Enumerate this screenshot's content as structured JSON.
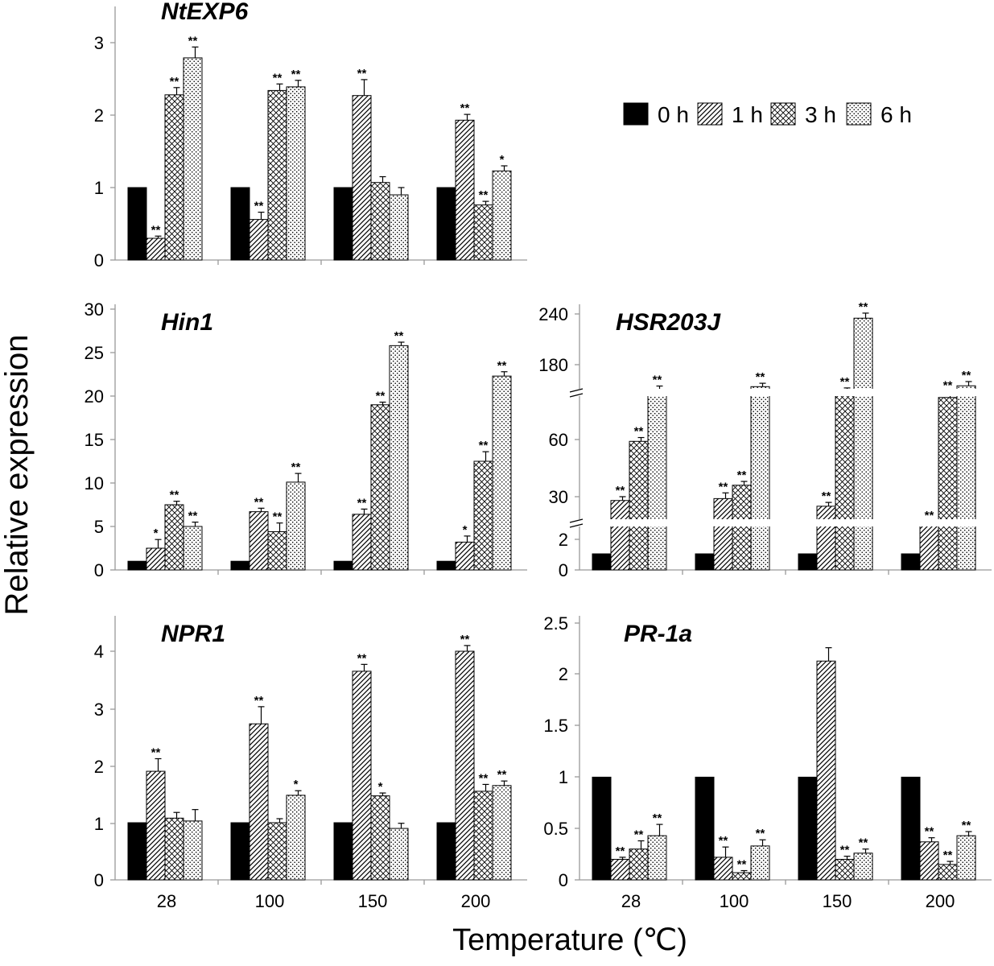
{
  "figure": {
    "ylabel": "Relative expression",
    "xlabel": "Temperature (℃)",
    "legend": [
      {
        "label": "0 h",
        "pattern": "solid"
      },
      {
        "label": "1 h",
        "pattern": "diagonal"
      },
      {
        "label": "3 h",
        "pattern": "crosshatch"
      },
      {
        "label": "6 h",
        "pattern": "dots"
      }
    ]
  },
  "chart_data": [
    {
      "type": "bar",
      "title": "NtEXP6",
      "categories": [
        "28",
        "100",
        "150",
        "200"
      ],
      "ylim": [
        0,
        3.5
      ],
      "yticks": [
        "0",
        "1",
        "2",
        "3"
      ],
      "series": [
        {
          "name": "0 h",
          "values": [
            1,
            1,
            1,
            1
          ],
          "errors": [
            0,
            0,
            0,
            0
          ],
          "sig": [
            "",
            "",
            "",
            ""
          ]
        },
        {
          "name": "1 h",
          "values": [
            0.3,
            0.56,
            2.27,
            1.93
          ],
          "errors": [
            0.03,
            0.1,
            0.22,
            0.08
          ],
          "sig": [
            "**",
            "**",
            "**",
            "**"
          ]
        },
        {
          "name": "3 h",
          "values": [
            2.28,
            2.34,
            1.07,
            0.76
          ],
          "errors": [
            0.1,
            0.09,
            0.08,
            0.05
          ],
          "sig": [
            "**",
            "**",
            "",
            "**"
          ]
        },
        {
          "name": "6 h",
          "values": [
            2.79,
            2.39,
            0.9,
            1.23
          ],
          "errors": [
            0.15,
            0.09,
            0.1,
            0.07
          ],
          "sig": [
            "**",
            "**",
            "",
            "*"
          ]
        }
      ]
    },
    {
      "type": "bar",
      "title": "Hin1",
      "categories": [
        "28",
        "100",
        "150",
        "200"
      ],
      "ylim": [
        0,
        30
      ],
      "yticks": [
        "0",
        "5",
        "10",
        "15",
        "20",
        "25",
        "30"
      ],
      "series": [
        {
          "name": "0 h",
          "values": [
            1,
            1,
            1,
            1
          ],
          "errors": [
            0,
            0,
            0,
            0
          ],
          "sig": [
            "",
            "",
            "",
            ""
          ]
        },
        {
          "name": "1 h",
          "values": [
            2.5,
            6.7,
            6.4,
            3.2
          ],
          "errors": [
            1.0,
            0.4,
            0.6,
            0.7
          ],
          "sig": [
            "*",
            "**",
            "**",
            "*"
          ]
        },
        {
          "name": "3 h",
          "values": [
            7.5,
            4.4,
            19.0,
            12.5
          ],
          "errors": [
            0.4,
            1.0,
            0.3,
            1.1
          ],
          "sig": [
            "**",
            "**",
            "**",
            "**"
          ]
        },
        {
          "name": "6 h",
          "values": [
            5.0,
            10.1,
            25.8,
            22.3
          ],
          "errors": [
            0.5,
            1.0,
            0.4,
            0.5
          ],
          "sig": [
            "**",
            "**",
            "**",
            "**"
          ]
        }
      ]
    },
    {
      "type": "bar",
      "title": "HSR203J",
      "categories": [
        "28",
        "100",
        "150",
        "200"
      ],
      "yscale": "broken",
      "yticks": [
        "0",
        "2",
        "30",
        "60",
        "180",
        "240"
      ],
      "series": [
        {
          "name": "0 h",
          "values": [
            1,
            1,
            1,
            1
          ],
          "errors": [
            0,
            0,
            0,
            0
          ],
          "sig": [
            "",
            "",
            "",
            ""
          ]
        },
        {
          "name": "1 h",
          "values": [
            28,
            29,
            25,
            15
          ],
          "errors": [
            2,
            3,
            2,
            2
          ],
          "sig": [
            "**",
            "**",
            "**",
            "**"
          ]
        },
        {
          "name": "3 h",
          "values": [
            59,
            36,
            83,
            82
          ],
          "errors": [
            2,
            2,
            4,
            3
          ],
          "sig": [
            "**",
            "**",
            "**",
            "**"
          ]
        },
        {
          "name": "6 h",
          "values": [
            83,
            154,
            235,
            155
          ],
          "errors": [
            5,
            4,
            6,
            5
          ],
          "sig": [
            "**",
            "**",
            "**",
            "**"
          ]
        }
      ]
    },
    {
      "type": "bar",
      "title": "NPR1",
      "categories": [
        "28",
        "100",
        "150",
        "200"
      ],
      "ylim": [
        0,
        4.5
      ],
      "yticks": [
        "0",
        "1",
        "2",
        "3",
        "4"
      ],
      "series": [
        {
          "name": "0 h",
          "values": [
            1,
            1,
            1,
            1
          ],
          "errors": [
            0,
            0,
            0,
            0
          ],
          "sig": [
            "",
            "",
            "",
            ""
          ]
        },
        {
          "name": "1 h",
          "values": [
            1.9,
            2.73,
            3.65,
            4.0
          ],
          "errors": [
            0.22,
            0.3,
            0.12,
            0.1
          ],
          "sig": [
            "**",
            "**",
            "**",
            "**"
          ]
        },
        {
          "name": "3 h",
          "values": [
            1.08,
            1.0,
            1.47,
            1.55
          ],
          "errors": [
            0.1,
            0.07,
            0.05,
            0.12
          ],
          "sig": [
            "",
            "",
            "*",
            "**"
          ]
        },
        {
          "name": "6 h",
          "values": [
            1.03,
            1.48,
            0.9,
            1.65
          ],
          "errors": [
            0.2,
            0.08,
            0.09,
            0.08
          ],
          "sig": [
            "",
            "*",
            "",
            "**"
          ]
        }
      ]
    },
    {
      "type": "bar",
      "title": "PR-1a",
      "categories": [
        "28",
        "100",
        "150",
        "200"
      ],
      "ylim": [
        0,
        2.5
      ],
      "yticks": [
        "0",
        "0.5",
        "1",
        "1.5",
        "2",
        "2.5"
      ],
      "series": [
        {
          "name": "0 h",
          "values": [
            1,
            1,
            1,
            1
          ],
          "errors": [
            0,
            0,
            0,
            0
          ],
          "sig": [
            "",
            "",
            "",
            ""
          ]
        },
        {
          "name": "1 h",
          "values": [
            0.2,
            0.22,
            2.13,
            0.37
          ],
          "errors": [
            0.02,
            0.1,
            0.13,
            0.04
          ],
          "sig": [
            "**",
            "**",
            "",
            "**"
          ]
        },
        {
          "name": "3 h",
          "values": [
            0.3,
            0.07,
            0.2,
            0.15
          ],
          "errors": [
            0.08,
            0.02,
            0.03,
            0.03
          ],
          "sig": [
            "**",
            "**",
            "**",
            "**"
          ]
        },
        {
          "name": "6 h",
          "values": [
            0.43,
            0.33,
            0.26,
            0.43
          ],
          "errors": [
            0.11,
            0.06,
            0.04,
            0.04
          ],
          "sig": [
            "**",
            "**",
            "**",
            "**"
          ]
        }
      ]
    }
  ]
}
